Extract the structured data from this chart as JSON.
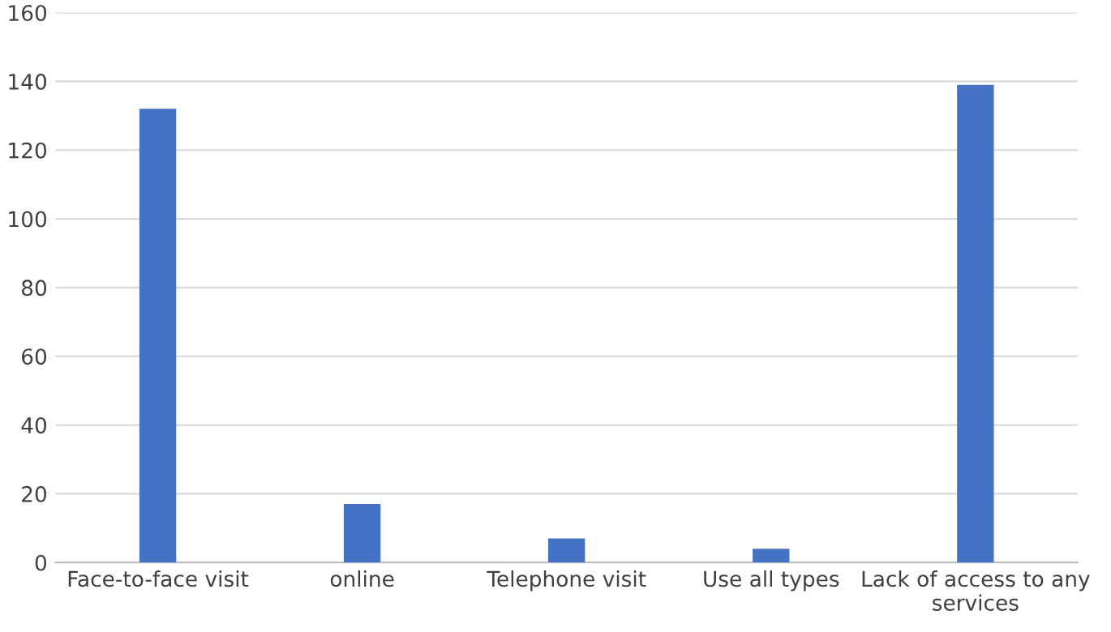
{
  "chart_data": {
    "type": "bar",
    "categories": [
      "Face-to-face visit",
      "online",
      "Telephone visit",
      "Use all types",
      "Lack of access to any services"
    ],
    "values": [
      132,
      17,
      7,
      4,
      139
    ],
    "color": "#4472c4",
    "ylim": [
      0,
      160
    ],
    "yticks": [
      0,
      20,
      40,
      60,
      80,
      100,
      120,
      140,
      160
    ],
    "grid": "y"
  }
}
